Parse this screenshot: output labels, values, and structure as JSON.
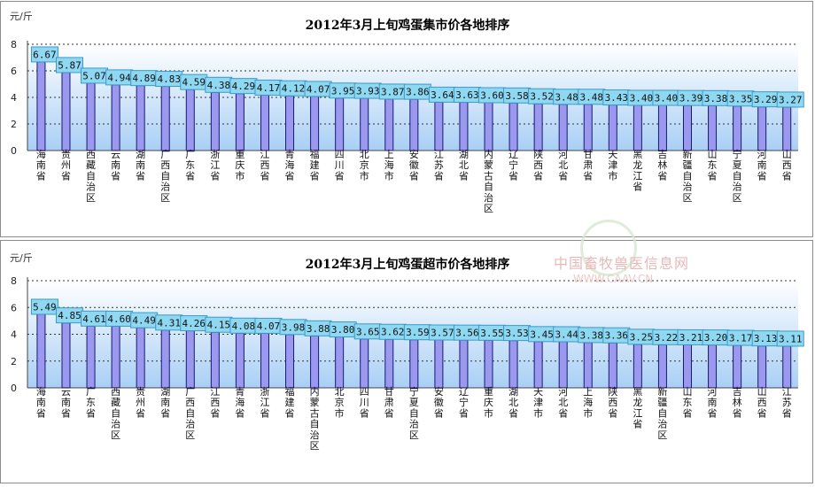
{
  "chart_data": [
    {
      "type": "bar",
      "title": "2012年3月上旬鸡蛋集市价各地排序",
      "ylabel": "元/斤",
      "ylim": [
        0,
        8
      ],
      "yticks": [
        0,
        2,
        4,
        6,
        8
      ],
      "grid": true,
      "categories": [
        "海南省",
        "贵州省",
        "西藏自治区",
        "云南省",
        "湖南省",
        "广西自治区",
        "广东省",
        "浙江省",
        "重庆市",
        "江西省",
        "青海省",
        "福建省",
        "四川省",
        "北京市",
        "上海市",
        "安徽省",
        "江苏省",
        "湖北省",
        "内蒙古自治区",
        "辽宁省",
        "陕西省",
        "河北省",
        "甘肃省",
        "天津市",
        "黑龙江省",
        "吉林省",
        "新疆自治区",
        "山东省",
        "宁夏自治区",
        "河南省",
        "山西省"
      ],
      "value_labels": [
        "6.67",
        "5.87",
        "5.07",
        "4.94",
        "4.89",
        "4.83",
        "4.59",
        "4.38",
        "4.29",
        "4.17",
        "4.12",
        "4.07",
        "3.95",
        "3.93",
        "3.87",
        "3.86",
        "3.64",
        "3.63",
        "3.60",
        "3.58",
        "3.52",
        "3.48",
        "3.48",
        "3.43",
        "3.40",
        "3.40",
        "3.39",
        "3.38",
        "3.35",
        "3.29",
        "3.27"
      ],
      "values": [
        6.67,
        5.87,
        5.07,
        4.94,
        4.89,
        4.83,
        4.59,
        4.38,
        4.29,
        4.17,
        4.12,
        4.07,
        3.95,
        3.93,
        3.87,
        3.86,
        3.64,
        3.63,
        3.6,
        3.58,
        3.52,
        3.48,
        3.48,
        3.43,
        3.4,
        3.4,
        3.39,
        3.38,
        3.35,
        3.29,
        3.27
      ]
    },
    {
      "type": "bar",
      "title": "2012年3月上旬鸡蛋超市价各地排序",
      "ylabel": "元/斤",
      "ylim": [
        0,
        8
      ],
      "yticks": [
        0,
        2,
        4,
        6,
        8
      ],
      "grid": true,
      "categories": [
        "海南省",
        "云南省",
        "广东省",
        "西藏自治区",
        "贵州省",
        "湖南省",
        "广西自治区",
        "江西省",
        "青海省",
        "浙江省",
        "福建省",
        "内蒙古自治区",
        "北京市",
        "四川省",
        "甘肃省",
        "宁夏自治区",
        "安徽省",
        "辽宁省",
        "重庆市",
        "湖北省",
        "天津市",
        "河北省",
        "上海市",
        "陕西省",
        "黑龙江省",
        "新疆自治区",
        "山东省",
        "河南省",
        "吉林省",
        "山西省",
        "江苏省"
      ],
      "value_labels": [
        "5.49",
        "4.85",
        "4.61",
        "4.60",
        "4.49",
        "4.31",
        "4.26",
        "4.15",
        "4.08",
        "4.07",
        "3.98",
        "3.88",
        "3.80",
        "3.65",
        "3.62",
        "3.59",
        "3.57",
        "3.56",
        "3.55",
        "3.53",
        "3.45",
        "3.44",
        "3.38",
        "3.36",
        "3.25",
        "3.22",
        "3.21",
        "3.20",
        "3.17",
        "3.13",
        "3.11"
      ],
      "values": [
        5.49,
        4.85,
        4.61,
        4.6,
        4.49,
        4.31,
        4.26,
        4.15,
        4.08,
        4.07,
        3.98,
        3.88,
        3.8,
        3.65,
        3.62,
        3.59,
        3.57,
        3.56,
        3.55,
        3.53,
        3.45,
        3.44,
        3.38,
        3.36,
        3.25,
        3.22,
        3.21,
        3.2,
        3.17,
        3.13,
        3.11
      ]
    }
  ],
  "watermark": {
    "name": "中国畜牧兽医信息网",
    "url": "WWW.CAAV.CN"
  },
  "colors": {
    "bar": "#9b98f0",
    "bar_edge": "#1a1a6e",
    "plot_bg_top": "#ffffff",
    "plot_bg_bottom": "#a9cff5",
    "label_box": "#8fd8f2",
    "label_edge": "#3a9ac8"
  }
}
